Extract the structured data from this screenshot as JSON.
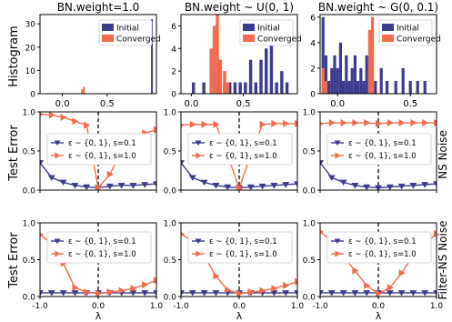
{
  "figure": {
    "row_labels": [
      "Histogram",
      "Test Error",
      "Test Error"
    ],
    "side_labels": [
      "NS Noise",
      "Filter-NS Noise"
    ],
    "xlabel": "λ",
    "colors": {
      "initial": "#3b3b8f",
      "converged": "#f26a4b",
      "noise01": "#3b3b8f",
      "noise10": "#f26a4b"
    }
  },
  "chart_data": [
    {
      "type": "bar",
      "panel": "histogram",
      "col": 0,
      "title": "BN.weight=1.0",
      "xlim": [
        -0.25,
        1.05
      ],
      "ylim": [
        0,
        34
      ],
      "xticks": [
        0.0,
        0.5
      ],
      "xticklabels": [
        "0.0",
        "0.5"
      ],
      "yticks": [
        0,
        10,
        20,
        30
      ],
      "yticklabels": [
        "0",
        "10",
        "20",
        "30"
      ],
      "legend": {
        "entries": [
          "Initial",
          "Converged"
        ],
        "position": "top-right"
      },
      "bin_width": 0.02,
      "series": [
        {
          "name": "Initial",
          "x": [
            1.0
          ],
          "counts": [
            32
          ]
        },
        {
          "name": "Converged",
          "x": [
            0.22,
            0.24
          ],
          "counts": [
            2,
            3
          ]
        }
      ]
    },
    {
      "type": "bar",
      "panel": "histogram",
      "col": 1,
      "title": "BN.weight ~ U(0, 1)",
      "xlim": [
        -0.1,
        1.02
      ],
      "ylim": [
        0,
        7
      ],
      "xticks": [
        0.0,
        0.5
      ],
      "xticklabels": [
        "0.0",
        "0.5"
      ],
      "yticks": [
        0,
        2,
        4,
        6
      ],
      "yticklabels": [
        "0",
        "2",
        "4",
        "6"
      ],
      "legend": {
        "entries": [
          "Initial",
          "Converged"
        ],
        "position": "top-right"
      },
      "bin_width": 0.03,
      "series": [
        {
          "name": "Initial",
          "x": [
            0.02,
            0.12,
            0.22,
            0.27,
            0.32,
            0.37,
            0.42,
            0.47,
            0.52,
            0.57,
            0.62,
            0.67,
            0.72,
            0.77,
            0.82,
            0.87,
            0.92
          ],
          "counts": [
            1,
            1,
            2,
            3,
            1,
            1,
            1,
            1,
            1,
            3,
            1,
            3,
            4,
            5,
            1,
            2,
            1
          ]
        },
        {
          "name": "Converged",
          "x": [
            0.19,
            0.22,
            0.25,
            0.28,
            0.32,
            0.35
          ],
          "counts": [
            4,
            6,
            7,
            3,
            2,
            1
          ]
        }
      ]
    },
    {
      "type": "bar",
      "panel": "histogram",
      "col": 2,
      "title": "BN.weight ~ G(0, 0.1)",
      "xlim": [
        -0.12,
        0.68
      ],
      "ylim": [
        0,
        6.2
      ],
      "xticks": [
        0.0,
        0.5
      ],
      "xticklabels": [
        "0.0",
        "0.5"
      ],
      "yticks": [
        0,
        2,
        4,
        6
      ],
      "yticklabels": [
        "0",
        "2",
        "4",
        "6"
      ],
      "legend": {
        "entries": [
          "Initial",
          "Converged"
        ],
        "position": "top-right"
      },
      "bin_width": 0.02,
      "series": [
        {
          "name": "Initial",
          "x": [
            -0.1,
            -0.08,
            -0.06,
            -0.04,
            -0.02,
            0.0,
            0.02,
            0.04,
            0.06,
            0.08,
            0.1,
            0.12,
            0.14,
            0.16,
            0.18,
            0.2,
            0.22,
            0.26,
            0.3,
            0.34,
            0.4,
            0.45,
            0.5,
            0.55,
            0.6
          ],
          "counts": [
            6,
            3,
            1,
            2,
            3,
            2,
            4,
            1,
            3,
            1,
            2,
            3,
            1,
            2,
            1,
            3,
            1,
            1,
            2,
            1,
            1,
            2,
            1,
            1,
            1
          ]
        },
        {
          "name": "Converged",
          "x": [
            -0.1,
            -0.08,
            0.22,
            0.24
          ],
          "counts": [
            2,
            1,
            5,
            6
          ]
        }
      ]
    },
    {
      "type": "line",
      "panel": "ns",
      "col": 0,
      "xlim": [
        -1,
        1
      ],
      "ylim": [
        0,
        1
      ],
      "xticks": [
        -1,
        0,
        1
      ],
      "yticks": [
        0,
        0.5,
        1
      ],
      "yticklabels": [
        "0.0",
        "0.5",
        "1.0"
      ],
      "grid": false,
      "legend": {
        "entries": [
          "ε ~ {0, 1}, s=0.1",
          "ε ~ {0, 1}, s=1.0"
        ],
        "position": "center"
      },
      "x": [
        -1.0,
        -0.8,
        -0.6,
        -0.4,
        -0.2,
        0.0,
        0.2,
        0.4,
        0.6,
        0.8,
        1.0
      ],
      "series": [
        {
          "name": "ε ~ {0, 1}, s=0.1",
          "values": [
            0.35,
            0.16,
            0.1,
            0.06,
            0.04,
            0.03,
            0.05,
            0.06,
            0.06,
            0.07,
            0.08
          ]
        },
        {
          "name": "ε ~ {0, 1}, s=1.0",
          "values": [
            0.97,
            0.96,
            0.93,
            0.88,
            0.83,
            0.03,
            0.2,
            0.5,
            0.66,
            0.73,
            0.77
          ]
        }
      ]
    },
    {
      "type": "line",
      "panel": "ns",
      "col": 1,
      "xlim": [
        -1,
        1
      ],
      "ylim": [
        0,
        1
      ],
      "xticks": [
        -1,
        0,
        1
      ],
      "yticks": [
        0,
        0.5,
        1
      ],
      "yticklabels": [
        "0.0",
        "0.5",
        "1.0"
      ],
      "grid": false,
      "legend": {
        "entries": [
          "ε ~ {0, 1}, s=0.1",
          "ε ~ {0, 1}, s=1.0"
        ],
        "position": "center"
      },
      "x": [
        -1.0,
        -0.8,
        -0.6,
        -0.4,
        -0.2,
        0.0,
        0.2,
        0.4,
        0.6,
        0.8,
        1.0
      ],
      "series": [
        {
          "name": "ε ~ {0, 1}, s=0.1",
          "values": [
            0.35,
            0.16,
            0.1,
            0.06,
            0.04,
            0.03,
            0.04,
            0.05,
            0.06,
            0.07,
            0.08
          ]
        },
        {
          "name": "ε ~ {0, 1}, s=1.0",
          "values": [
            0.83,
            0.84,
            0.84,
            0.84,
            0.45,
            0.02,
            0.45,
            0.84,
            0.85,
            0.85,
            0.85
          ]
        }
      ]
    },
    {
      "type": "line",
      "panel": "ns",
      "col": 2,
      "xlim": [
        -1,
        1
      ],
      "ylim": [
        0,
        1
      ],
      "xticks": [
        -1,
        0,
        1
      ],
      "yticks": [
        0,
        0.5,
        1
      ],
      "yticklabels": [
        "0.0",
        "0.5",
        "1.0"
      ],
      "grid": false,
      "legend": {
        "entries": [
          "ε ~ {0, 1}, s=0.1",
          "ε ~ {0, 1}, s=1.0"
        ],
        "position": "center"
      },
      "x": [
        -1.0,
        -0.8,
        -0.6,
        -0.4,
        -0.2,
        0.0,
        0.2,
        0.4,
        0.6,
        0.8,
        1.0
      ],
      "series": [
        {
          "name": "ε ~ {0, 1}, s=0.1",
          "values": [
            0.35,
            0.16,
            0.1,
            0.06,
            0.04,
            0.03,
            0.04,
            0.05,
            0.06,
            0.07,
            0.08
          ]
        },
        {
          "name": "ε ~ {0, 1}, s=1.0",
          "values": [
            0.85,
            0.86,
            0.86,
            0.86,
            0.86,
            0.85,
            0.86,
            0.86,
            0.86,
            0.86,
            0.86
          ]
        }
      ]
    },
    {
      "type": "line",
      "panel": "filter",
      "col": 0,
      "xlim": [
        -1,
        1
      ],
      "ylim": [
        0,
        1
      ],
      "xticks": [
        -1,
        0,
        1
      ],
      "yticks": [
        0,
        0.5,
        1
      ],
      "yticklabels": [
        "0.0",
        "0.5",
        "1.0"
      ],
      "grid": false,
      "legend": {
        "entries": [
          "ε ~ {0, 1}, s=0.1",
          "ε ~ {0, 1}, s=1.0"
        ],
        "position": "top"
      },
      "x": [
        -1.0,
        -0.8,
        -0.6,
        -0.4,
        -0.2,
        0.0,
        0.2,
        0.4,
        0.6,
        0.8,
        1.0
      ],
      "series": [
        {
          "name": "ε ~ {0, 1}, s=0.1",
          "values": [
            0.05,
            0.05,
            0.05,
            0.05,
            0.05,
            0.05,
            0.05,
            0.05,
            0.05,
            0.05,
            0.05
          ]
        },
        {
          "name": "ε ~ {0, 1}, s=1.0",
          "values": [
            0.84,
            0.72,
            0.45,
            0.12,
            0.06,
            0.04,
            0.06,
            0.08,
            0.11,
            0.16,
            0.22
          ]
        }
      ]
    },
    {
      "type": "line",
      "panel": "filter",
      "col": 1,
      "xlim": [
        -1,
        1
      ],
      "ylim": [
        0,
        1
      ],
      "xticks": [
        -1,
        0,
        1
      ],
      "yticks": [
        0,
        0.5,
        1
      ],
      "yticklabels": [
        "0.0",
        "0.5",
        "1.0"
      ],
      "grid": false,
      "legend": {
        "entries": [
          "ε ~ {0, 1}, s=0.1",
          "ε ~ {0, 1}, s=1.0"
        ],
        "position": "top"
      },
      "x": [
        -1.0,
        -0.8,
        -0.6,
        -0.4,
        -0.2,
        0.0,
        0.2,
        0.4,
        0.6,
        0.8,
        1.0
      ],
      "series": [
        {
          "name": "ε ~ {0, 1}, s=0.1",
          "values": [
            0.05,
            0.05,
            0.05,
            0.05,
            0.05,
            0.05,
            0.05,
            0.05,
            0.05,
            0.05,
            0.05
          ]
        },
        {
          "name": "ε ~ {0, 1}, s=1.0",
          "values": [
            0.85,
            0.75,
            0.55,
            0.28,
            0.09,
            0.04,
            0.06,
            0.08,
            0.11,
            0.15,
            0.2
          ]
        }
      ]
    },
    {
      "type": "line",
      "panel": "filter",
      "col": 2,
      "xlim": [
        -1,
        1
      ],
      "ylim": [
        0,
        1
      ],
      "xticks": [
        -1,
        0,
        1
      ],
      "yticks": [
        0,
        0.5,
        1
      ],
      "yticklabels": [
        "0.0",
        "0.5",
        "1.0"
      ],
      "grid": false,
      "legend": {
        "entries": [
          "ε ~ {0, 1}, s=0.1",
          "ε ~ {0, 1}, s=1.0"
        ],
        "position": "top"
      },
      "x": [
        -1.0,
        -0.8,
        -0.6,
        -0.4,
        -0.2,
        0.0,
        0.2,
        0.4,
        0.6,
        0.8,
        1.0
      ],
      "series": [
        {
          "name": "ε ~ {0, 1}, s=0.1",
          "values": [
            0.05,
            0.05,
            0.05,
            0.05,
            0.05,
            0.05,
            0.05,
            0.05,
            0.05,
            0.05,
            0.05
          ]
        },
        {
          "name": "ε ~ {0, 1}, s=1.0",
          "values": [
            0.88,
            0.75,
            0.55,
            0.35,
            0.15,
            0.04,
            0.12,
            0.32,
            0.55,
            0.72,
            0.85
          ]
        }
      ]
    }
  ]
}
